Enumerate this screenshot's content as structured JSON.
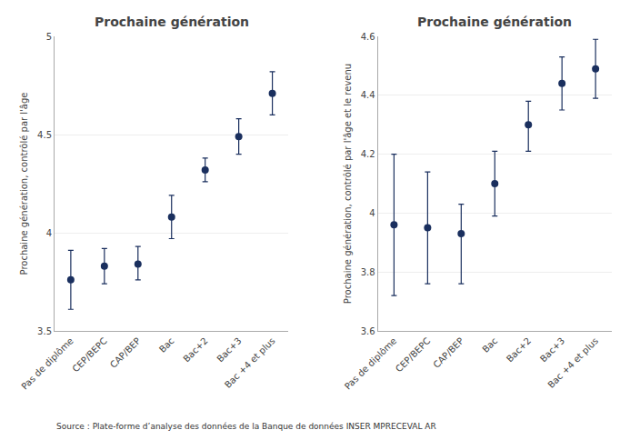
{
  "chart_data": [
    {
      "type": "scatter",
      "title": "Prochaine génération",
      "ylabel": "Prochaine génération, contrôlé par l'âge",
      "categories": [
        "Pas de diplôme",
        "CEP/BEPC",
        "CAP/BEP",
        "Bac",
        "Bac+2",
        "Bac+3",
        "Bac +4 et plus"
      ],
      "values": [
        3.76,
        3.83,
        3.84,
        4.08,
        4.32,
        4.49,
        4.71
      ],
      "ci_low": [
        3.61,
        3.74,
        3.76,
        3.97,
        4.26,
        4.4,
        4.6
      ],
      "ci_high": [
        3.91,
        3.92,
        3.93,
        4.19,
        4.38,
        4.58,
        4.82
      ],
      "color": "#1a2f5e",
      "ylim": [
        3.5,
        5.0
      ],
      "yticks": [
        3.5,
        4,
        4.5,
        5
      ],
      "grid": true
    },
    {
      "type": "scatter",
      "title": "Prochaine génération",
      "ylabel": "Prochaine génération, contrôlé par l'âge et le revenu",
      "categories": [
        "Pas de diplôme",
        "CEP/BEPC",
        "CAP/BEP",
        "Bac",
        "Bac+2",
        "Bac+3",
        "Bac +4 et plus"
      ],
      "values": [
        3.96,
        3.95,
        3.93,
        4.1,
        4.3,
        4.44,
        4.49
      ],
      "ci_low": [
        3.72,
        3.76,
        3.76,
        3.99,
        4.21,
        4.35,
        4.39
      ],
      "ci_high": [
        4.2,
        4.14,
        4.03,
        4.21,
        4.38,
        4.53,
        4.59
      ],
      "color": "#1a2f5e",
      "ylim": [
        3.6,
        4.6
      ],
      "yticks": [
        3.6,
        3.8,
        4,
        4.2,
        4.4,
        4.6
      ],
      "grid": true
    }
  ],
  "caption": "Source : Plate-forme d’analyse des données de la Banque de données INSER MPRECEVAL AR"
}
